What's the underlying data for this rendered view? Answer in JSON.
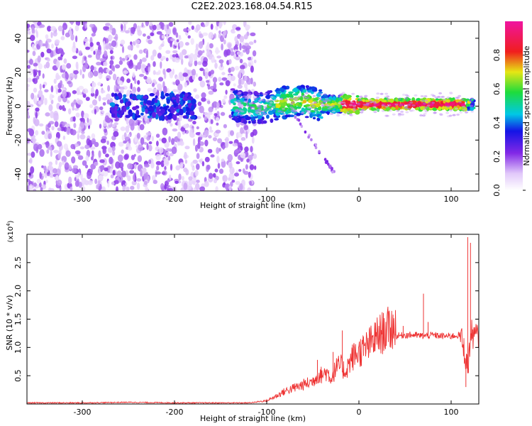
{
  "title": "C2E2.2023.168.04.54.R15",
  "chart_data": [
    {
      "type": "heatmap",
      "xlabel": "Height of straight line (km)",
      "ylabel": "Frequency (Hz)",
      "xlim": [
        -360,
        130
      ],
      "ylim": [
        -50,
        50
      ],
      "xticks": [
        -300,
        -200,
        -100,
        0,
        100
      ],
      "yticks": [
        -40,
        -20,
        0,
        20,
        40
      ],
      "colorbar": {
        "label": "Normalized spectral amplitude",
        "range": [
          0,
          1
        ],
        "ticks": [
          "0.0",
          "0.2",
          "0.4",
          "0.6",
          "0.8"
        ],
        "colormap": "rainbow (white-lavender-purple-blue-cyan-green-yellow-red-magenta)"
      }
    },
    {
      "type": "line",
      "xlabel": "Height of straight line (km)",
      "ylabel": "SNR (10 * v/v)",
      "y_multiplier": "(x10",
      "y_multiplier_exp": "4",
      "y_multiplier_close": ")",
      "xlim": [
        -360,
        130
      ],
      "ylim": [
        0,
        3.0
      ],
      "xticks": [
        -300,
        -200,
        -100,
        0,
        100
      ],
      "yticks": [
        0.5,
        1.0,
        1.5,
        2.0,
        2.5
      ],
      "color": "#ee3333",
      "series": [
        {
          "x": [
            -360,
            -300,
            -250,
            -200,
            -150,
            -120,
            -100,
            -90,
            -80,
            -70,
            -60,
            -50,
            -45,
            -40,
            -35,
            -30,
            -25,
            -20,
            -15,
            -10,
            -5,
            0,
            10,
            20,
            30,
            40,
            50,
            60,
            70,
            80,
            90,
            100,
            110,
            115,
            118,
            120,
            122,
            125,
            130
          ],
          "y": [
            0.02,
            0.02,
            0.03,
            0.02,
            0.02,
            0.02,
            0.05,
            0.12,
            0.2,
            0.25,
            0.3,
            0.35,
            0.45,
            0.45,
            0.5,
            0.4,
            0.55,
            0.6,
            0.5,
            0.65,
            0.75,
            0.8,
            0.9,
            1.05,
            1.15,
            1.2,
            1.22,
            1.22,
            1.2,
            1.22,
            1.2,
            1.2,
            1.22,
            0.9,
            0.6,
            1.0,
            1.25,
            1.2,
            1.2
          ]
        }
      ],
      "spikes": [
        {
          "x": -45,
          "y": 0.78
        },
        {
          "x": -28,
          "y": 0.92
        },
        {
          "x": -18,
          "y": 1.3
        },
        {
          "x": -7,
          "y": 1.05
        },
        {
          "x": 5,
          "y": 1.18
        },
        {
          "x": 37,
          "y": 1.58
        },
        {
          "x": 48,
          "y": 1.38
        },
        {
          "x": 70,
          "y": 1.95
        },
        {
          "x": 75,
          "y": 1.45
        },
        {
          "x": 118,
          "y": 2.95
        },
        {
          "x": 121,
          "y": 2.85
        },
        {
          "x": 116,
          "y": 0.3
        }
      ]
    }
  ]
}
